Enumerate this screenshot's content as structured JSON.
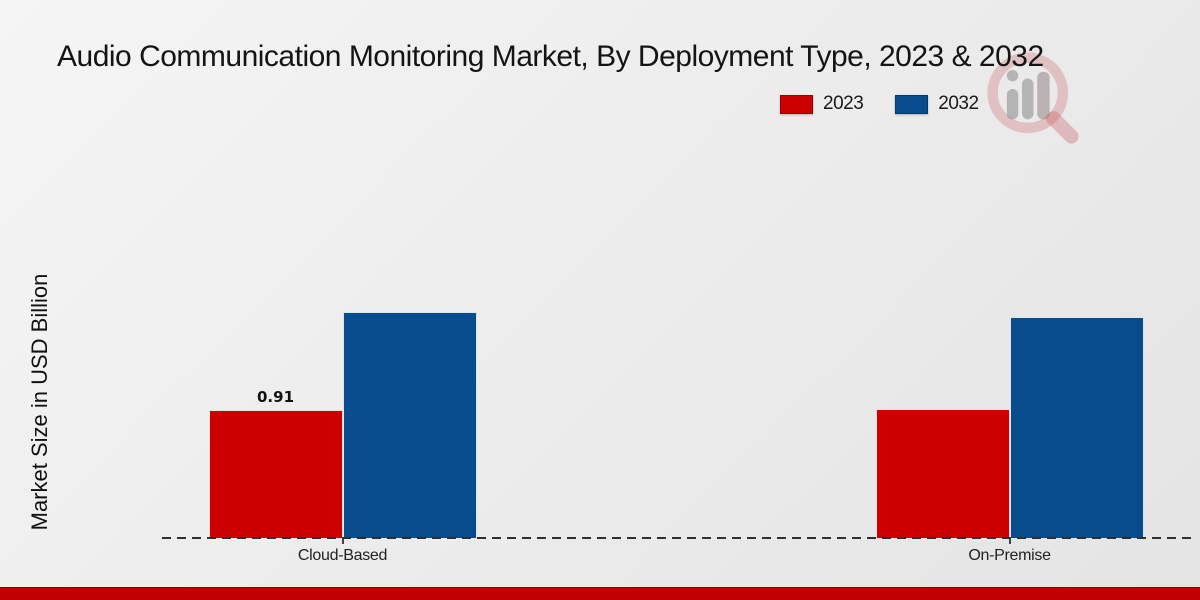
{
  "title": "Audio Communication Monitoring Market, By Deployment Type, 2023 & 2032",
  "legend": {
    "items": [
      {
        "label": "2023",
        "color": "#cc0000"
      },
      {
        "label": "2032",
        "color": "#084c8d"
      }
    ]
  },
  "chart_data": {
    "type": "bar",
    "title": "Audio Communication Monitoring Market, By Deployment Type, 2023 & 2032",
    "ylabel": "Market Size in USD Billion",
    "xlabel": "",
    "categories": [
      "Cloud-Based",
      "On-Premise"
    ],
    "series": [
      {
        "name": "2023",
        "color": "#cc0000",
        "values": [
          0.91,
          0.92
        ]
      },
      {
        "name": "2032",
        "color": "#084c8d",
        "values": [
          1.61,
          1.57
        ]
      }
    ],
    "value_labels": [
      [
        "0.91",
        ""
      ],
      [
        "",
        ""
      ]
    ],
    "ylim": [
      0,
      2.8
    ],
    "grid": false,
    "legend_position": "top-right",
    "baseline_style": "dashed"
  },
  "colors": {
    "accent_strip": "#c00000",
    "background": "#ebebeb",
    "axis_dash": "#2f2f2f",
    "text": "#111111"
  },
  "watermark": {
    "name": "magnifier-bar-chart-logo"
  }
}
